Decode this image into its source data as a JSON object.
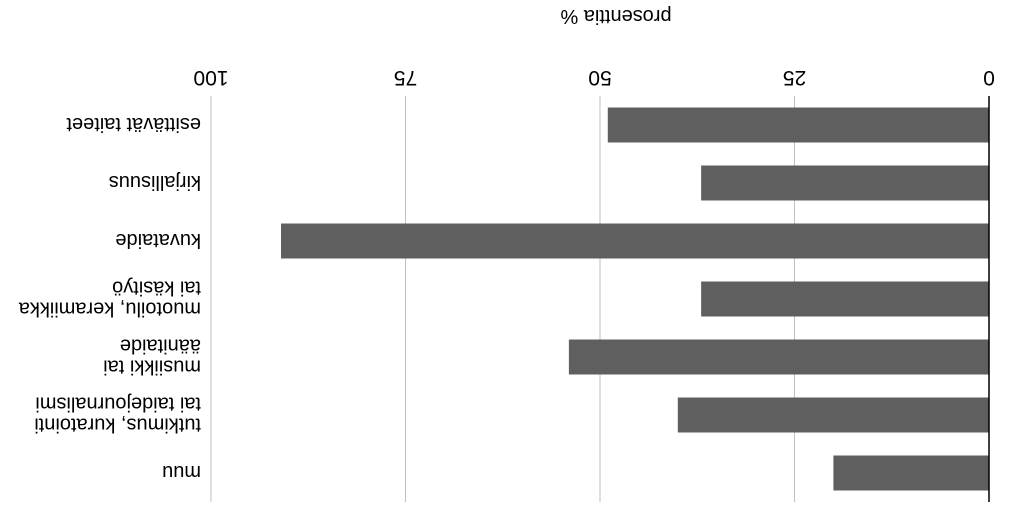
{
  "chart_data": {
    "type": "bar",
    "orientation": "horizontal",
    "rendered_upside_down": true,
    "title": "",
    "xlabel": "prosenttia %",
    "ylabel": "",
    "xlim": [
      0,
      100
    ],
    "xticks": [
      0,
      25,
      50,
      75,
      100
    ],
    "grid": true,
    "categories": [
      "esittävät taiteet",
      "kirjallisuus",
      "kuvataide",
      "muotoilu, keramiikka tai käsityö",
      "musiikki tai äänitaide",
      "tutkimus, kuratointi tai taidejournalismi",
      "muu"
    ],
    "category_lines": [
      [
        "esittävät taiteet"
      ],
      [
        "kirjallisuus"
      ],
      [
        "kuvataide"
      ],
      [
        "muotoilu, keramiikka",
        "tai käsityö"
      ],
      [
        "musiikki tai",
        "äänitaide"
      ],
      [
        "tutkimus, kuratointi",
        "tai taidejournalismi"
      ],
      [
        "muu"
      ]
    ],
    "values": [
      49,
      37,
      91,
      37,
      54,
      40,
      20
    ],
    "bar_color": "#5f5f5f",
    "grid_color": "#bfbfbf"
  }
}
